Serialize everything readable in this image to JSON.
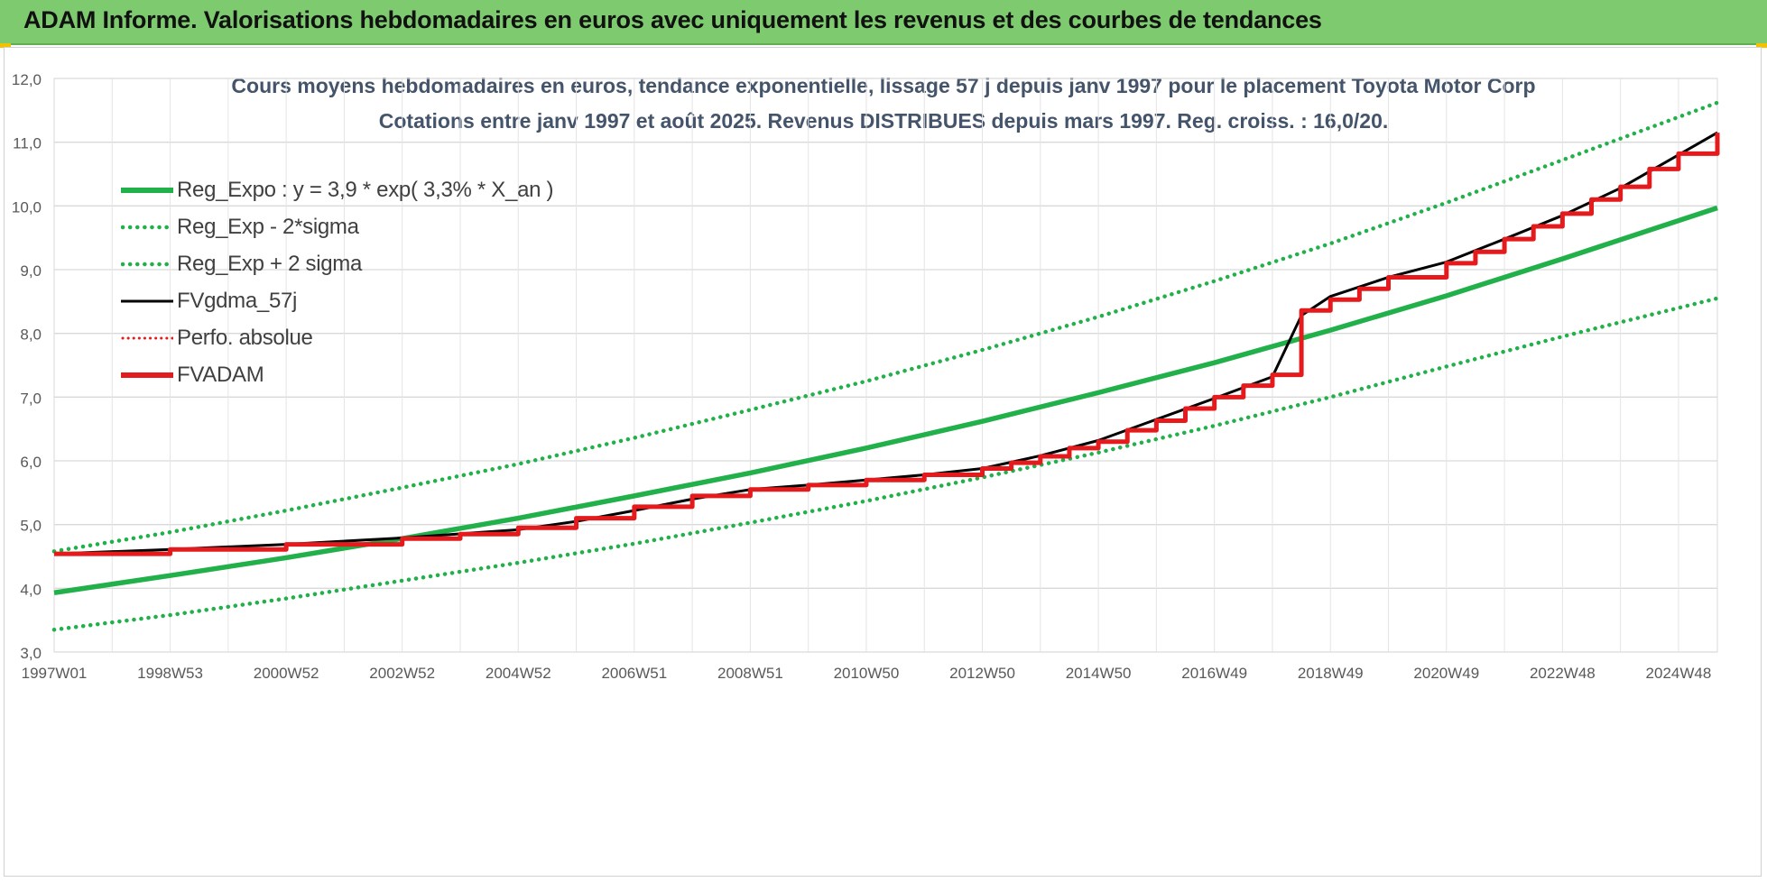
{
  "banner": {
    "title": "ADAM Informe. Valorisations hebdomadaires en euros avec uniquement les revenus et des courbes de tendances"
  },
  "chart_data": {
    "type": "line",
    "title": "Cours moyens hebdomadaires en euros, tendance exponentielle, lissage 57 j depuis janv 1997  pour le placement Toyota Motor Corp",
    "subtitle": "Cotations entre janv 1997 et août 2025.  Revenus DISTRIBUES depuis mars 1997. Reg. croiss. : 16,0/20.",
    "xlabel": "",
    "ylabel": "",
    "ylim": [
      3.0,
      12.0
    ],
    "y_ticks": [
      "3,0",
      "4,0",
      "5,0",
      "6,0",
      "7,0",
      "8,0",
      "9,0",
      "10,0",
      "11,0",
      "12,0"
    ],
    "x_ticks": [
      "1997W01",
      "1998W53",
      "2000W52",
      "2002W52",
      "2004W52",
      "2006W51",
      "2008W51",
      "2010W50",
      "2012W50",
      "2014W50",
      "2016W49",
      "2018W49",
      "2020W49",
      "2022W48",
      "2024W48"
    ],
    "x_tick_years": [
      1997.0,
      1999.0,
      2001.0,
      2003.0,
      2005.0,
      2007.0,
      2009.0,
      2011.0,
      2013.0,
      2015.0,
      2017.0,
      2019.0,
      2021.0,
      2023.0,
      2025.0
    ],
    "x_range_years": [
      1997.0,
      2025.67
    ],
    "grid": true,
    "legend_position": "top-left",
    "series": [
      {
        "name": "Reg_Expo : y = 3,9 * exp( 3,3% *  X_an )",
        "style": "solid",
        "color": "#22b04b",
        "x": [
          1997.0,
          1999.0,
          2001.0,
          2003.0,
          2005.0,
          2007.0,
          2009.0,
          2011.0,
          2013.0,
          2015.0,
          2017.0,
          2019.0,
          2021.0,
          2023.0,
          2025.67
        ],
        "y": [
          3.93,
          4.2,
          4.48,
          4.78,
          5.1,
          5.45,
          5.81,
          6.2,
          6.62,
          7.07,
          7.54,
          8.05,
          8.59,
          9.17,
          9.97
        ]
      },
      {
        "name": "Reg_Exp - 2*sigma",
        "style": "dotted",
        "color": "#22b04b",
        "x": [
          1997.0,
          1999.0,
          2001.0,
          2003.0,
          2005.0,
          2007.0,
          2009.0,
          2011.0,
          2013.0,
          2015.0,
          2017.0,
          2019.0,
          2021.0,
          2023.0,
          2025.67
        ],
        "y": [
          3.35,
          3.58,
          3.84,
          4.12,
          4.4,
          4.7,
          5.03,
          5.37,
          5.74,
          6.13,
          6.55,
          7.0,
          7.48,
          7.95,
          8.55
        ]
      },
      {
        "name": "Reg_Exp + 2 sigma",
        "style": "dotted",
        "color": "#22b04b",
        "x": [
          1997.0,
          1999.0,
          2001.0,
          2003.0,
          2005.0,
          2007.0,
          2009.0,
          2011.0,
          2013.0,
          2015.0,
          2017.0,
          2019.0,
          2021.0,
          2023.0,
          2025.67
        ],
        "y": [
          4.58,
          4.88,
          5.22,
          5.58,
          5.95,
          6.36,
          6.8,
          7.25,
          7.74,
          8.26,
          8.82,
          9.41,
          10.05,
          10.72,
          11.62
        ]
      },
      {
        "name": "FVgdma_57j",
        "style": "solid",
        "color": "#000000",
        "x": [
          1997.0,
          1999.0,
          2001.0,
          2003.0,
          2005.0,
          2006.0,
          2007.0,
          2008.0,
          2009.0,
          2010.0,
          2011.0,
          2012.0,
          2013.0,
          2014.0,
          2015.0,
          2016.0,
          2017.0,
          2018.0,
          2018.5,
          2019.0,
          2020.0,
          2021.0,
          2022.0,
          2023.0,
          2024.0,
          2025.67
        ],
        "y": [
          4.54,
          4.61,
          4.69,
          4.79,
          4.92,
          5.05,
          5.22,
          5.4,
          5.55,
          5.62,
          5.7,
          5.78,
          5.88,
          6.08,
          6.32,
          6.65,
          6.98,
          7.32,
          8.28,
          8.58,
          8.88,
          9.12,
          9.48,
          9.85,
          10.28,
          11.15
        ]
      },
      {
        "name": "Perfo. absolue",
        "style": "dotted",
        "color": "#e41a1c",
        "x": [],
        "y": []
      },
      {
        "name": "FVADAM",
        "style": "step",
        "color": "#e41a1c",
        "x": [
          1997.0,
          1999.0,
          2001.0,
          2003.0,
          2004.0,
          2005.0,
          2006.0,
          2007.0,
          2008.0,
          2009.0,
          2010.0,
          2011.0,
          2012.0,
          2013.0,
          2013.5,
          2014.0,
          2014.5,
          2015.0,
          2015.5,
          2016.0,
          2016.5,
          2017.0,
          2017.5,
          2018.0,
          2018.25,
          2018.5,
          2019.0,
          2019.5,
          2020.0,
          2021.0,
          2021.5,
          2022.0,
          2022.5,
          2023.0,
          2023.5,
          2024.0,
          2024.5,
          2025.0,
          2025.67
        ],
        "y": [
          4.54,
          4.61,
          4.69,
          4.78,
          4.85,
          4.95,
          5.1,
          5.28,
          5.45,
          5.55,
          5.62,
          5.7,
          5.78,
          5.88,
          5.97,
          6.07,
          6.2,
          6.3,
          6.48,
          6.63,
          6.82,
          7.0,
          7.18,
          7.35,
          7.35,
          8.36,
          8.53,
          8.7,
          8.88,
          9.1,
          9.28,
          9.48,
          9.68,
          9.88,
          10.1,
          10.3,
          10.58,
          10.82,
          11.15
        ]
      }
    ]
  }
}
